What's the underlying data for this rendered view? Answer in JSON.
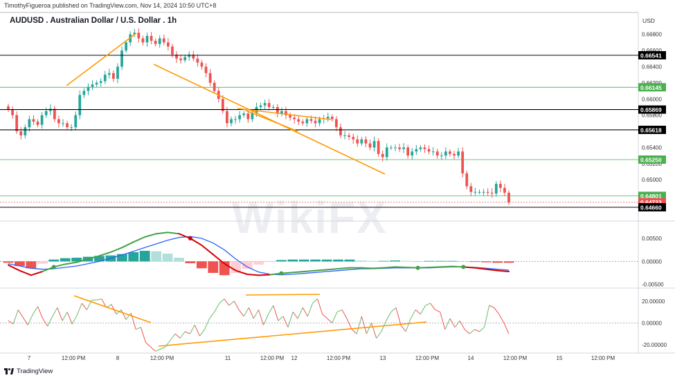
{
  "header": {
    "publisher_line": "TimothyFigueroa published on TradingView.com, Nov 14, 2024 10:50 UTC+8",
    "title": "AUDUSD . Australian Dollar / U.S. Dollar . 1h",
    "currency": "USD"
  },
  "footer": {
    "brand": "TradingView"
  },
  "watermark": {
    "text": "WikiFX"
  },
  "colors": {
    "up": "#26a69a",
    "down": "#ef5350",
    "trendline": "#ff9800",
    "level_black": "#000000",
    "level_green": "#4caf50",
    "macd_line": "#d50000",
    "macd_signal": "#2962ff",
    "macd_green": "#43a047",
    "hist_pos_strong": "#26a69a",
    "hist_pos_weak": "#b2dfdb",
    "hist_neg_strong": "#ef5350",
    "hist_neg_weak": "#ffcdd2",
    "osc_up": "#66bb6a",
    "osc_down": "#ef5350"
  },
  "chart_data": [
    {
      "type": "candlestick",
      "title": "AUDUSD . Australian Dollar / U.S. Dollar . 1h",
      "ylim": [
        0.6466,
        0.669
      ],
      "y_ticks": [
        "0.66800",
        "0.66600",
        "0.66400",
        "0.66200",
        "0.66000",
        "0.65800",
        "0.65600",
        "0.65400",
        "0.65200",
        "0.65000"
      ],
      "x_ticks": [
        "7",
        "12:00 PM",
        "8",
        "12:00 PM",
        "11",
        "12:00 PM",
        "12",
        "12:00 PM",
        "13",
        "12:00 PM",
        "14",
        "12:00 PM",
        "15",
        "12:00 PM"
      ],
      "ohlc_close": [
        0.6587,
        0.658,
        0.656,
        0.6555,
        0.6565,
        0.6575,
        0.6572,
        0.6568,
        0.658,
        0.6585,
        0.6588,
        0.6575,
        0.657,
        0.657,
        0.6565,
        0.6565,
        0.658,
        0.6605,
        0.661,
        0.6615,
        0.6618,
        0.662,
        0.6622,
        0.663,
        0.6632,
        0.6625,
        0.664,
        0.666,
        0.667,
        0.668,
        0.6682,
        0.6675,
        0.667,
        0.6678,
        0.6672,
        0.6668,
        0.6675,
        0.667,
        0.6665,
        0.6655,
        0.665,
        0.6648,
        0.6652,
        0.6655,
        0.665,
        0.6645,
        0.664,
        0.6632,
        0.662,
        0.661,
        0.66,
        0.6585,
        0.657,
        0.6575,
        0.6575,
        0.658,
        0.6582,
        0.6575,
        0.6583,
        0.659,
        0.6592,
        0.6595,
        0.659,
        0.659,
        0.6582,
        0.6585,
        0.658,
        0.6577,
        0.6575,
        0.6572,
        0.657,
        0.6575,
        0.6573,
        0.657,
        0.6575,
        0.6576,
        0.6578,
        0.6575,
        0.6565,
        0.6555,
        0.6555,
        0.6553,
        0.655,
        0.6545,
        0.655,
        0.6545,
        0.654,
        0.6548,
        0.6532,
        0.6528,
        0.654,
        0.654,
        0.654,
        0.6538,
        0.654,
        0.653,
        0.6535,
        0.6538,
        0.654,
        0.6538,
        0.6535,
        0.6535,
        0.653,
        0.653,
        0.6535,
        0.6532,
        0.653,
        0.6535,
        0.6508,
        0.6492,
        0.6485,
        0.6485,
        0.6485,
        0.6485,
        0.6484,
        0.6483,
        0.6495,
        0.649,
        0.6484,
        0.6472
      ],
      "levels": [
        {
          "value": 0.66541,
          "label": "0.66541",
          "style": "black"
        },
        {
          "value": 0.66145,
          "label": "0.66145",
          "style": "green"
        },
        {
          "value": 0.65869,
          "label": "0.65869",
          "style": "black"
        },
        {
          "value": 0.65618,
          "label": "0.65618",
          "style": "black"
        },
        {
          "value": 0.6525,
          "label": "0.65250",
          "style": "green"
        },
        {
          "value": 0.64801,
          "label": "0.64801",
          "style": "green"
        },
        {
          "value": 0.64723,
          "label": "0.64723",
          "style": "red"
        },
        {
          "value": 0.6466,
          "label": "0.64660",
          "style": "black"
        }
      ]
    },
    {
      "type": "macd",
      "ylim": [
        -0.0055,
        0.008
      ],
      "y_ticks": [
        "0.00500",
        "0.00000",
        "-0.00500"
      ],
      "macd": [
        -0.0008,
        -0.002,
        -0.003,
        -0.0022,
        -0.0012,
        -0.0006,
        -0.0002,
        0.0005,
        0.0012,
        0.002,
        0.003,
        0.0042,
        0.0053,
        0.006,
        0.0063,
        0.006,
        0.005,
        0.0035,
        0.0015,
        -0.0005,
        -0.002,
        -0.0028,
        -0.003,
        -0.0029,
        -0.0026,
        -0.0024,
        -0.0022,
        -0.002,
        -0.0018,
        -0.0016,
        -0.0014,
        -0.0014,
        -0.0015,
        -0.0014,
        -0.0012,
        -0.0013,
        -0.0014,
        -0.0013,
        -0.0012,
        -0.0011,
        -0.0012,
        -0.0014,
        -0.0017,
        -0.002,
        -0.0022
      ],
      "signal": [
        -0.0005,
        -0.001,
        -0.0015,
        -0.0017,
        -0.0016,
        -0.0013,
        -0.001,
        -0.0005,
        0.0,
        0.0007,
        0.0014,
        0.0022,
        0.003,
        0.0038,
        0.0046,
        0.0052,
        0.0054,
        0.005,
        0.004,
        0.0025,
        0.0005,
        -0.0012,
        -0.0023,
        -0.0028,
        -0.0029,
        -0.0028,
        -0.0026,
        -0.0024,
        -0.0022,
        -0.002,
        -0.0018,
        -0.0016,
        -0.0016,
        -0.0015,
        -0.0014,
        -0.0014,
        -0.0014,
        -0.0014,
        -0.0013,
        -0.0012,
        -0.0012,
        -0.0013,
        -0.0015,
        -0.0017,
        -0.0019
      ],
      "histogram": [
        -0.0003,
        -0.001,
        -0.0015,
        -0.0005,
        0.0004,
        0.0007,
        0.0008,
        0.001,
        0.0012,
        0.0013,
        0.0016,
        0.002,
        0.0023,
        0.0022,
        0.0017,
        0.0008,
        -0.0004,
        -0.0015,
        -0.0025,
        -0.003,
        -0.0025,
        -0.0016,
        -0.0007,
        -0.0001,
        0.0003,
        0.0004,
        0.0004,
        0.0004,
        0.0004,
        0.0004,
        0.0004,
        0.0002,
        0.0001,
        0.0001,
        0.0002,
        0.0001,
        0.0,
        0.0001,
        0.0001,
        0.0001,
        0.0,
        -0.0001,
        -0.0002,
        -0.0003,
        -0.0003
      ]
    },
    {
      "type": "line",
      "ylim": [
        -27,
        30
      ],
      "y_ticks": [
        "20.00000",
        "0.00000",
        "-20.00000"
      ],
      "values": [
        2,
        -1,
        12,
        5,
        -2,
        8,
        15,
        4,
        -3,
        6,
        14,
        2,
        10,
        -1,
        7,
        18,
        12,
        21,
        21,
        22,
        14,
        17,
        8,
        12,
        3,
        9,
        -6,
        -4,
        -18,
        -22,
        -26,
        -24,
        -22,
        -16,
        -10,
        -14,
        -8,
        -10,
        -2,
        -12,
        -6,
        4,
        10,
        18,
        22,
        16,
        20,
        12,
        6,
        14,
        4,
        12,
        -2,
        8,
        16,
        2,
        6,
        -4,
        10,
        4,
        14,
        6,
        18,
        22,
        8,
        4,
        0,
        10,
        12,
        4,
        -6,
        -10,
        6,
        -10,
        0,
        -14,
        -8,
        2,
        10,
        14,
        -2,
        -8,
        4,
        12,
        8,
        16,
        18,
        12,
        10,
        -6,
        4,
        -4,
        2,
        -6,
        -10,
        -6,
        -8,
        -4,
        16,
        14,
        8,
        0,
        -10
      ]
    }
  ]
}
